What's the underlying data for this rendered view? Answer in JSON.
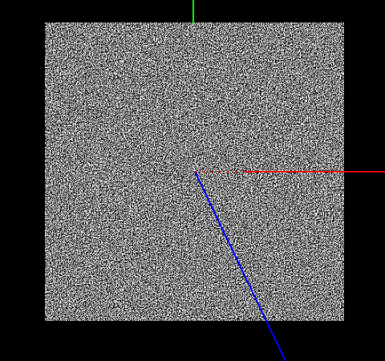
{
  "viewport": {
    "background_color": "#000000"
  },
  "noise_plane": {
    "pattern": "random-noise",
    "light_color": "#ffffff",
    "dark_color": "#000000"
  },
  "axes": {
    "x_axis_color": "#ff0000",
    "y_axis_color": "#00ff00",
    "z_axis_color": "#0000ff"
  }
}
